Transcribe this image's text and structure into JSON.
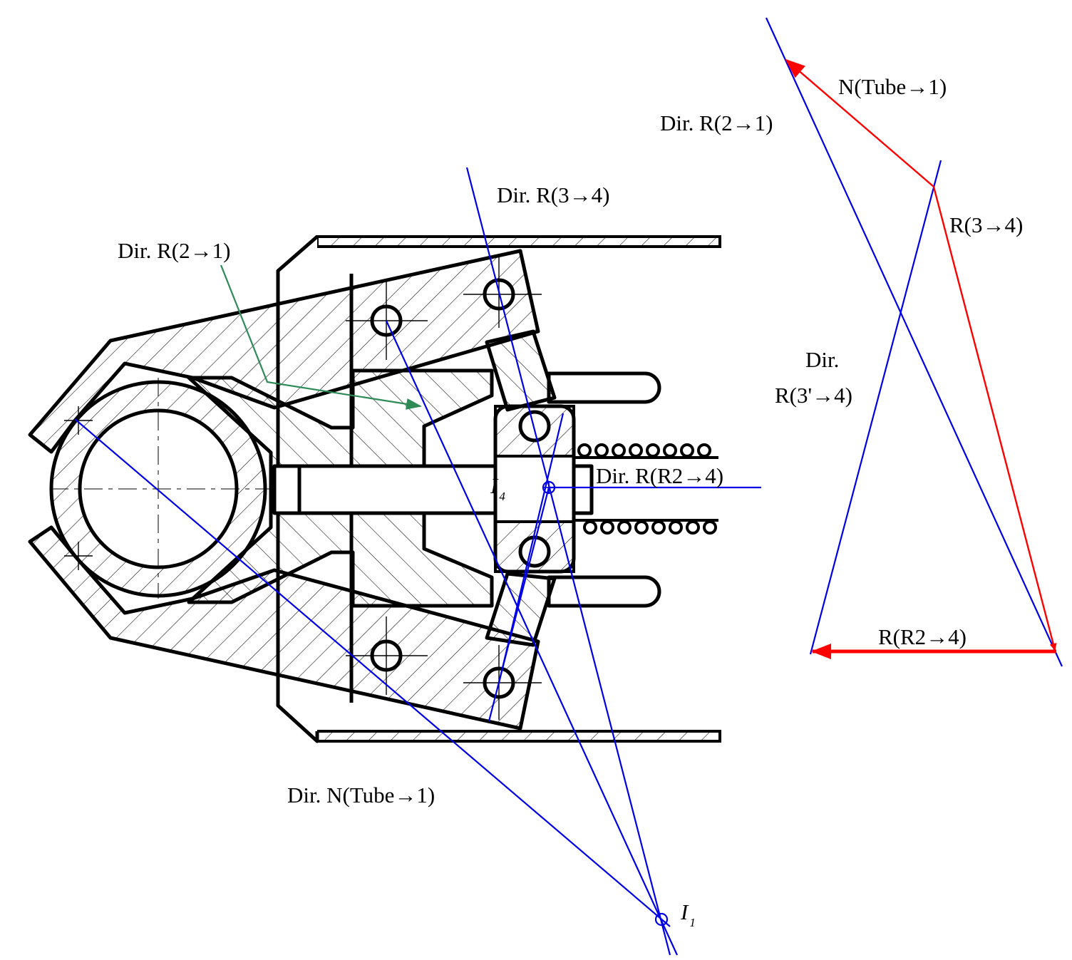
{
  "labels": {
    "dir_r21_left": "Dir. R(2→1)",
    "dir_r34_top": "Dir. R(3→4)",
    "dir_r21_right": "Dir. R(2→1)",
    "n_tube1_vec": "N(Tube→1)",
    "r34_vec": "R(3→4)",
    "dir_word": "Dir.",
    "r3p4": "R(3'→4)",
    "dir_rr24": "Dir. R(R2→4)",
    "rr24_vec": "R(R2→4)",
    "dir_n_tube1": "Dir. N(Tube→1)",
    "i4_main": "I",
    "i4_sub": "4",
    "i1_main": "I",
    "i1_sub": "1"
  },
  "colors": {
    "construction_lines": "#0000e6",
    "force_vectors": "#ff0000",
    "leader": "#2e8b57",
    "drawing": "#000000"
  }
}
